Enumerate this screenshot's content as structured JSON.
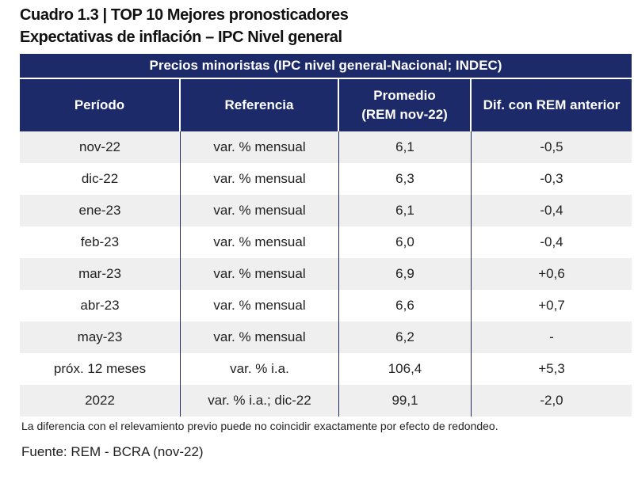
{
  "header": {
    "title": "Cuadro 1.3 | TOP 10 Mejores pronosticadores",
    "subtitle": "Expectativas de inflación – IPC Nivel general"
  },
  "table": {
    "caption": "Precios minoristas (IPC nivel general-Nacional; INDEC)",
    "columns": [
      "Período",
      "Referencia",
      "Promedio\n(REM nov-22)",
      "Dif. con REM anterior"
    ],
    "rows": [
      [
        "nov-22",
        "var. % mensual",
        "6,1",
        "-0,5"
      ],
      [
        "dic-22",
        "var. % mensual",
        "6,3",
        "-0,3"
      ],
      [
        "ene-23",
        "var. % mensual",
        "6,1",
        "-0,4"
      ],
      [
        "feb-23",
        "var. % mensual",
        "6,0",
        "-0,4"
      ],
      [
        "mar-23",
        "var. % mensual",
        "6,9",
        "+0,6"
      ],
      [
        "abr-23",
        "var. % mensual",
        "6,6",
        "+0,7"
      ],
      [
        "may-23",
        "var. % mensual",
        "6,2",
        "-"
      ],
      [
        "próx. 12 meses",
        "var. % i.a.",
        "106,4",
        "+5,3"
      ],
      [
        "2022",
        "var. % i.a.; dic-22",
        "99,1",
        "-2,0"
      ]
    ]
  },
  "footer": {
    "note": "La diferencia con el relevamiento previo puede no coincidir exactamente por efecto de redondeo.",
    "source": "Fuente: REM - BCRA (nov-22)"
  }
}
